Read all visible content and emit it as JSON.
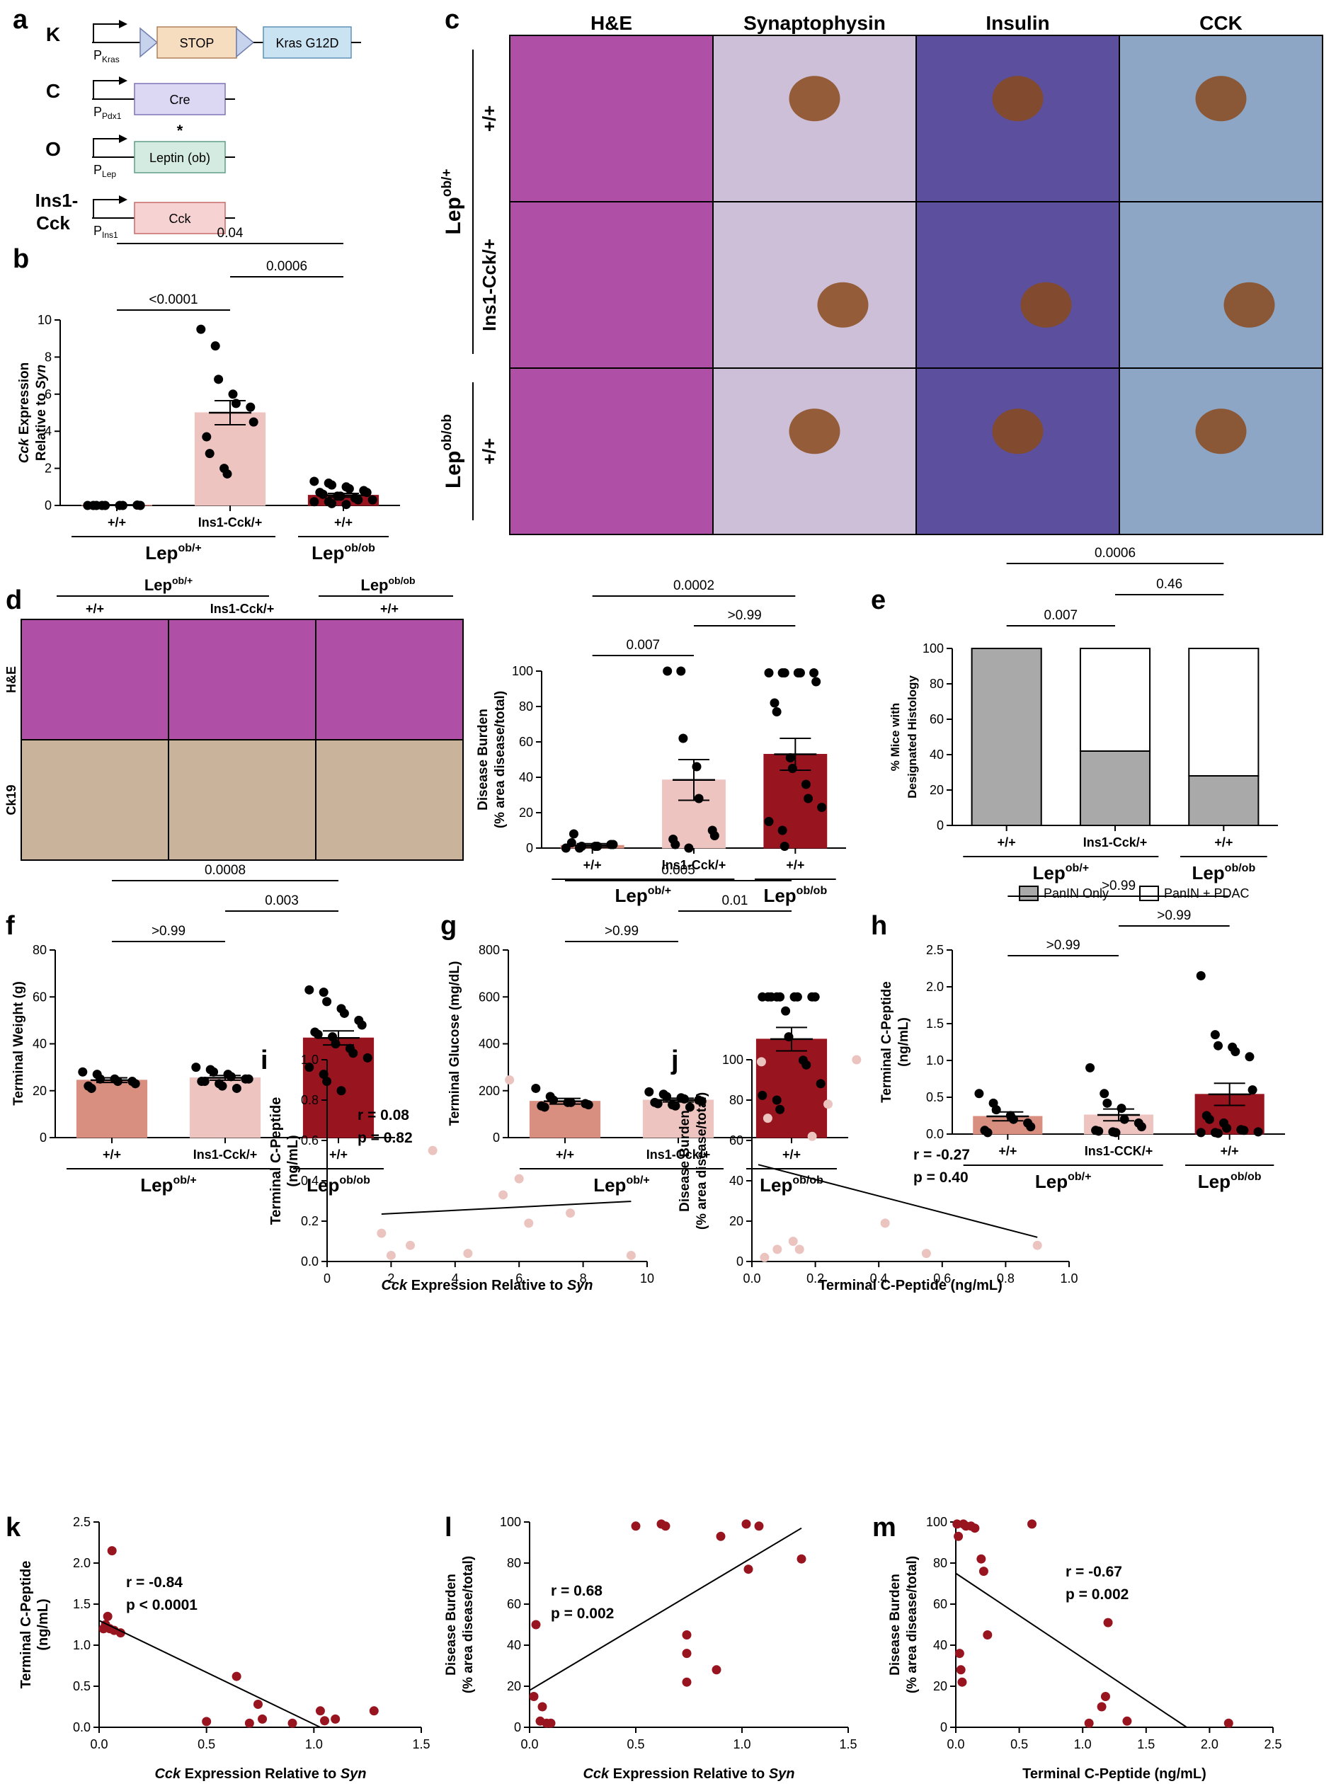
{
  "colors": {
    "ctrl": "#d98f80",
    "ins": "#eec4c1",
    "ob": "#98141f",
    "scatter_i": "#ebc4c0",
    "scatter_k": "#98141f",
    "panin": "#a9a9a9",
    "he": "#b04fa6",
    "syn": "#cdbfd7",
    "insulin": "#5b4f9e",
    "cck": "#8ea6c6",
    "ck19": "#c9b49b"
  },
  "panel_letters": [
    "a",
    "b",
    "c",
    "d",
    "e",
    "f",
    "g",
    "h",
    "i",
    "j",
    "k",
    "m",
    "l"
  ],
  "groups": {
    "wt": "+/+",
    "ins": "Ins1-Cck/+",
    "insCaps": "Ins1-CCK/+",
    "lep_het_base": "Lep",
    "lep_het_sup": "ob/+",
    "lep_hom_base": "Lep",
    "lep_hom_sup": "ob/ob"
  },
  "panel_a": {
    "rows": [
      {
        "label": "K",
        "promoter": "P",
        "promoter_sub": "Kras",
        "boxes": [
          "STOP",
          "Kras G12D"
        ]
      },
      {
        "label": "C",
        "promoter": "P",
        "promoter_sub": "Pdx1",
        "boxes": [
          "Cre"
        ]
      },
      {
        "label": "O",
        "promoter": "P",
        "promoter_sub": "Lep",
        "boxes": [
          "Leptin (ob)"
        ],
        "mark": "*"
      },
      {
        "label": "Ins1-",
        "label2": "Cck",
        "promoter": "P",
        "promoter_sub": "Ins1",
        "boxes": [
          "Cck"
        ]
      }
    ]
  },
  "panel_c": {
    "columns": [
      "H&E",
      "Synaptophysin",
      "Insulin",
      "CCK"
    ],
    "row_labels": [
      "+/+",
      "Ins1-Cck/+",
      "+/+"
    ],
    "group_labels": [
      {
        "base": "Lep",
        "sup": "ob/+"
      },
      {
        "base": "Lep",
        "sup": "ob/ob"
      }
    ]
  },
  "panel_d_images": {
    "row_labels": [
      "H&E",
      "Ck19"
    ],
    "col_labels": [
      "+/+",
      "Ins1-Cck/+",
      "+/+"
    ]
  },
  "chart_data": [
    {
      "id": "b",
      "type": "bar",
      "ylabel_parts": [
        "Cck",
        " Expression",
        "Relative to ",
        "Syn"
      ],
      "ylim": [
        0,
        10
      ],
      "yticks": [
        0,
        2,
        4,
        6,
        8,
        10
      ],
      "categories": [
        "+/+",
        "Ins1-Cck/+",
        "+/+"
      ],
      "means": [
        0.02,
        5.0,
        0.55
      ],
      "sem": [
        0.01,
        0.65,
        0.1
      ],
      "points": [
        [
          0,
          0,
          0,
          0,
          0,
          0.02,
          0,
          0,
          0
        ],
        [
          9.5,
          8.6,
          6.8,
          6.0,
          5.5,
          5.3,
          4.5,
          3.7,
          2.8,
          2.0,
          1.7
        ],
        [
          1.3,
          1.2,
          1.1,
          1.0,
          0.9,
          0.8,
          0.7,
          0.7,
          0.6,
          0.5,
          0.5,
          0.4,
          0.3,
          0.3,
          0.2,
          0.2,
          0.1,
          0.05
        ]
      ],
      "comparisons": [
        {
          "a": 0,
          "b": 1,
          "label": "<0.0001"
        },
        {
          "a": 1,
          "b": 2,
          "label": "0.0006"
        },
        {
          "a": 0,
          "b": 2,
          "label": "0.04"
        }
      ]
    },
    {
      "id": "d",
      "type": "bar",
      "ylabel": [
        "Disease Burden",
        "(% area disease/total)"
      ],
      "ylim": [
        0,
        100
      ],
      "yticks": [
        0,
        20,
        40,
        60,
        80,
        100
      ],
      "categories": [
        "+/+",
        "Ins1-Cck/+",
        "+/+"
      ],
      "means": [
        1.5,
        38.5,
        53
      ],
      "sem": [
        1,
        11.5,
        9
      ],
      "points": [
        [
          0,
          0,
          1,
          1,
          1,
          2,
          2,
          3,
          8
        ],
        [
          100,
          100,
          62,
          46,
          28,
          10,
          7,
          5,
          2,
          0
        ],
        [
          99,
          99,
          99,
          99,
          99,
          99,
          94,
          82,
          77,
          51,
          45,
          36,
          28,
          23,
          15,
          10,
          1
        ]
      ],
      "comparisons": [
        {
          "a": 0,
          "b": 1,
          "label": "0.007"
        },
        {
          "a": 1,
          "b": 2,
          "label": ">0.99"
        },
        {
          "a": 0,
          "b": 2,
          "label": "0.0002"
        }
      ]
    },
    {
      "id": "e",
      "type": "stacked-bar",
      "ylabel": [
        "% Mice with",
        "Designated Histology"
      ],
      "ylim": [
        0,
        100
      ],
      "yticks": [
        0,
        20,
        40,
        60,
        80,
        100
      ],
      "categories": [
        "+/+",
        "Ins1-Cck/+",
        "+/+"
      ],
      "series": [
        {
          "name": "PanIN Only",
          "values": [
            100,
            42,
            28
          ]
        },
        {
          "name": "PanIN + PDAC",
          "values": [
            0,
            58,
            72
          ]
        }
      ],
      "comparisons": [
        {
          "a": 0,
          "b": 1,
          "label": "0.007"
        },
        {
          "a": 1,
          "b": 2,
          "label": "0.46"
        },
        {
          "a": 0,
          "b": 2,
          "label": "0.0006"
        }
      ]
    },
    {
      "id": "f",
      "type": "bar",
      "ylabel": [
        "Terminal Weight (g)"
      ],
      "ylim": [
        0,
        80
      ],
      "yticks": [
        0,
        20,
        40,
        60,
        80
      ],
      "categories": [
        "+/+",
        "Ins1-Cck/+",
        "+/+"
      ],
      "means": [
        24.5,
        25.5,
        42.5
      ],
      "sem": [
        1,
        1,
        3
      ],
      "points": [
        [
          28,
          27,
          25,
          25,
          24,
          24,
          23,
          22,
          21
        ],
        [
          30,
          29,
          28,
          27,
          26,
          25,
          25,
          24,
          24,
          23,
          22,
          21
        ],
        [
          63,
          62,
          58,
          55,
          53,
          50,
          48,
          45,
          44,
          43,
          40,
          38,
          36,
          34,
          30,
          27,
          24,
          20
        ]
      ],
      "comparisons": [
        {
          "a": 0,
          "b": 1,
          "label": ">0.99"
        },
        {
          "a": 1,
          "b": 2,
          "label": "0.003"
        },
        {
          "a": 0,
          "b": 2,
          "label": "0.0008"
        }
      ]
    },
    {
      "id": "g",
      "type": "bar",
      "ylabel": [
        "Terminal Glucose (mg/dL)"
      ],
      "ylim": [
        0,
        800
      ],
      "yticks": [
        0,
        200,
        400,
        600,
        800
      ],
      "categories": [
        "+/+",
        "Ins1-Cck/+",
        "+/+"
      ],
      "means": [
        155,
        160,
        420
      ],
      "sem": [
        12,
        8,
        50
      ],
      "points": [
        [
          210,
          175,
          160,
          150,
          150,
          145,
          140,
          135,
          130
        ],
        [
          195,
          185,
          175,
          170,
          165,
          160,
          155,
          150,
          145,
          140,
          135,
          130
        ],
        [
          600,
          600,
          600,
          600,
          600,
          600,
          600,
          600,
          600,
          540,
          430,
          330,
          310,
          230,
          180,
          160,
          120
        ]
      ],
      "comparisons": [
        {
          "a": 0,
          "b": 1,
          "label": ">0.99"
        },
        {
          "a": 1,
          "b": 2,
          "label": "0.01"
        },
        {
          "a": 0,
          "b": 2,
          "label": "0.005"
        }
      ]
    },
    {
      "id": "h",
      "type": "bar",
      "ylabel": [
        "Terminal C-Peptide",
        "(ng/mL)"
      ],
      "ylim": [
        0,
        2.5
      ],
      "yticks": [
        0,
        0.5,
        1.0,
        1.5,
        2.0,
        2.5
      ],
      "ytick_labels": [
        "0.0",
        "0.5",
        "1.0",
        "1.5",
        "2.0",
        "2.5"
      ],
      "categories": [
        "+/+",
        "Ins1-CCK/+",
        "+/+"
      ],
      "means": [
        0.24,
        0.26,
        0.54
      ],
      "sem": [
        0.06,
        0.08,
        0.15
      ],
      "points": [
        [
          0.55,
          0.42,
          0.33,
          0.25,
          0.2,
          0.15,
          0.1,
          0.05,
          0.02
        ],
        [
          0.9,
          0.55,
          0.42,
          0.35,
          0.2,
          0.15,
          0.1,
          0.05,
          0.04,
          0.03,
          0.02
        ],
        [
          2.15,
          1.35,
          1.2,
          1.18,
          1.12,
          1.05,
          0.6,
          0.25,
          0.2,
          0.15,
          0.08,
          0.06,
          0.05,
          0.03,
          0.02,
          0.02,
          0.01
        ]
      ],
      "comparisons": [
        {
          "a": 0,
          "b": 1,
          "label": ">0.99"
        },
        {
          "a": 1,
          "b": 2,
          "label": ">0.99"
        },
        {
          "a": 0,
          "b": 2,
          "label": ">0.99"
        }
      ]
    },
    {
      "id": "i",
      "type": "scatter",
      "xlabel_parts": [
        "Cck",
        " Expression Relative to ",
        "Syn"
      ],
      "ylabel": [
        "Terminal C-Peptide",
        "(ng/mL)"
      ],
      "xlim": [
        0,
        10
      ],
      "ylim": [
        0,
        1.0
      ],
      "xticks": [
        0,
        2,
        4,
        6,
        8,
        10
      ],
      "yticks": [
        0,
        0.2,
        0.4,
        0.6,
        0.8,
        1.0
      ],
      "ytick_labels": [
        "0.0",
        "0.2",
        "0.4",
        "0.6",
        "0.8",
        "1.0"
      ],
      "annotation": [
        "r = 0.08",
        "p = 0.82"
      ],
      "points": [
        [
          1.7,
          0.14
        ],
        [
          2.0,
          0.03
        ],
        [
          2.6,
          0.08
        ],
        [
          3.3,
          0.55
        ],
        [
          4.4,
          0.04
        ],
        [
          5.5,
          0.33
        ],
        [
          5.7,
          0.9
        ],
        [
          6.0,
          0.41
        ],
        [
          6.3,
          0.19
        ],
        [
          7.6,
          0.24
        ],
        [
          9.5,
          0.03
        ]
      ],
      "fit": [
        [
          1.7,
          0.235
        ],
        [
          9.5,
          0.298
        ]
      ]
    },
    {
      "id": "j",
      "type": "scatter",
      "xlabel": "Terminal C-Peptide (ng/mL)",
      "ylabel": [
        "Disease Burden",
        "(% area disease/total)"
      ],
      "xlim": [
        0,
        1.0
      ],
      "ylim": [
        0,
        100
      ],
      "xticks": [
        0,
        0.2,
        0.4,
        0.6,
        0.8,
        1.0
      ],
      "yticks": [
        0,
        20,
        40,
        60,
        80,
        100
      ],
      "xtick_labels": [
        "0.0",
        "0.2",
        "0.4",
        "0.6",
        "0.8",
        "1.0"
      ],
      "annotation": [
        "r = -0.27",
        "p = 0.40"
      ],
      "points": [
        [
          0.03,
          99
        ],
        [
          0.04,
          2
        ],
        [
          0.05,
          71
        ],
        [
          0.08,
          6
        ],
        [
          0.13,
          10
        ],
        [
          0.15,
          6
        ],
        [
          0.19,
          62
        ],
        [
          0.24,
          78
        ],
        [
          0.33,
          100
        ],
        [
          0.42,
          19
        ],
        [
          0.55,
          4
        ],
        [
          0.9,
          8
        ]
      ],
      "fit": [
        [
          0.02,
          48
        ],
        [
          0.9,
          12
        ]
      ]
    },
    {
      "id": "k",
      "type": "scatter",
      "xlabel_parts": [
        "Cck",
        " Expression Relative to ",
        "Syn"
      ],
      "ylabel": [
        "Terminal C-Peptide",
        "(ng/mL)"
      ],
      "xlim": [
        0,
        1.5
      ],
      "ylim": [
        0,
        2.5
      ],
      "xticks": [
        0,
        0.5,
        1.0,
        1.5
      ],
      "yticks": [
        0,
        0.5,
        1.0,
        1.5,
        2.0,
        2.5
      ],
      "xtick_labels": [
        "0.0",
        "0.5",
        "1.0",
        "1.5"
      ],
      "ytick_labels": [
        "0.0",
        "0.5",
        "1.0",
        "1.5",
        "2.0",
        "2.5"
      ],
      "annotation": [
        "r = -0.84",
        "p < 0.0001"
      ],
      "points": [
        [
          0.02,
          1.2
        ],
        [
          0.03,
          1.25
        ],
        [
          0.04,
          1.35
        ],
        [
          0.05,
          1.2
        ],
        [
          0.06,
          2.15
        ],
        [
          0.07,
          1.18
        ],
        [
          0.1,
          1.15
        ],
        [
          0.5,
          0.07
        ],
        [
          0.64,
          0.62
        ],
        [
          0.7,
          0.05
        ],
        [
          0.74,
          0.28
        ],
        [
          0.76,
          0.1
        ],
        [
          0.9,
          0.05
        ],
        [
          1.03,
          0.2
        ],
        [
          1.05,
          0.08
        ],
        [
          1.1,
          0.1
        ],
        [
          1.28,
          0.2
        ]
      ],
      "fit": [
        [
          0,
          1.3
        ],
        [
          1.03,
          0
        ]
      ]
    },
    {
      "id": "l",
      "type": "scatter",
      "xlabel_parts": [
        "Cck",
        " Expression Relative to ",
        "Syn"
      ],
      "ylabel": [
        "Disease Burden",
        "(% area disease/total)"
      ],
      "xlim": [
        0,
        1.5
      ],
      "ylim": [
        0,
        100
      ],
      "xticks": [
        0,
        0.5,
        1.0,
        1.5
      ],
      "yticks": [
        0,
        20,
        40,
        60,
        80,
        100
      ],
      "xtick_labels": [
        "0.0",
        "0.5",
        "1.0",
        "1.5"
      ],
      "annotation": [
        "r = 0.68",
        "p = 0.002"
      ],
      "points": [
        [
          0.02,
          15
        ],
        [
          0.03,
          50
        ],
        [
          0.05,
          3
        ],
        [
          0.06,
          10
        ],
        [
          0.08,
          2
        ],
        [
          0.1,
          2
        ],
        [
          0.5,
          98
        ],
        [
          0.62,
          99
        ],
        [
          0.64,
          98
        ],
        [
          0.74,
          45
        ],
        [
          0.74,
          36
        ],
        [
          0.74,
          22
        ],
        [
          0.88,
          28
        ],
        [
          0.9,
          93
        ],
        [
          1.02,
          99
        ],
        [
          1.03,
          77
        ],
        [
          1.08,
          98
        ],
        [
          1.28,
          82
        ]
      ],
      "fit": [
        [
          0,
          18
        ],
        [
          1.28,
          97
        ]
      ]
    },
    {
      "id": "m",
      "type": "scatter",
      "xlabel": "Terminal C-Peptide (ng/mL)",
      "ylabel": [
        "Disease Burden",
        "(% area disease/total)"
      ],
      "xlim": [
        0,
        2.5
      ],
      "ylim": [
        0,
        100
      ],
      "xticks": [
        0,
        0.5,
        1.0,
        1.5,
        2.0,
        2.5
      ],
      "yticks": [
        0,
        20,
        40,
        60,
        80,
        100
      ],
      "xtick_labels": [
        "0.0",
        "0.5",
        "1.0",
        "1.5",
        "2.0",
        "2.5"
      ],
      "annotation": [
        "r = -0.67",
        "p = 0.002"
      ],
      "points": [
        [
          0.01,
          99
        ],
        [
          0.02,
          93
        ],
        [
          0.03,
          36
        ],
        [
          0.04,
          28
        ],
        [
          0.05,
          22
        ],
        [
          0.06,
          99
        ],
        [
          0.08,
          98
        ],
        [
          0.12,
          98
        ],
        [
          0.15,
          97
        ],
        [
          0.2,
          82
        ],
        [
          0.22,
          76
        ],
        [
          0.25,
          45
        ],
        [
          0.6,
          99
        ],
        [
          1.05,
          2
        ],
        [
          1.15,
          10
        ],
        [
          1.18,
          15
        ],
        [
          1.2,
          51
        ],
        [
          1.35,
          3
        ],
        [
          2.15,
          2
        ]
      ],
      "fit": [
        [
          0,
          75
        ],
        [
          1.82,
          0
        ]
      ]
    }
  ]
}
